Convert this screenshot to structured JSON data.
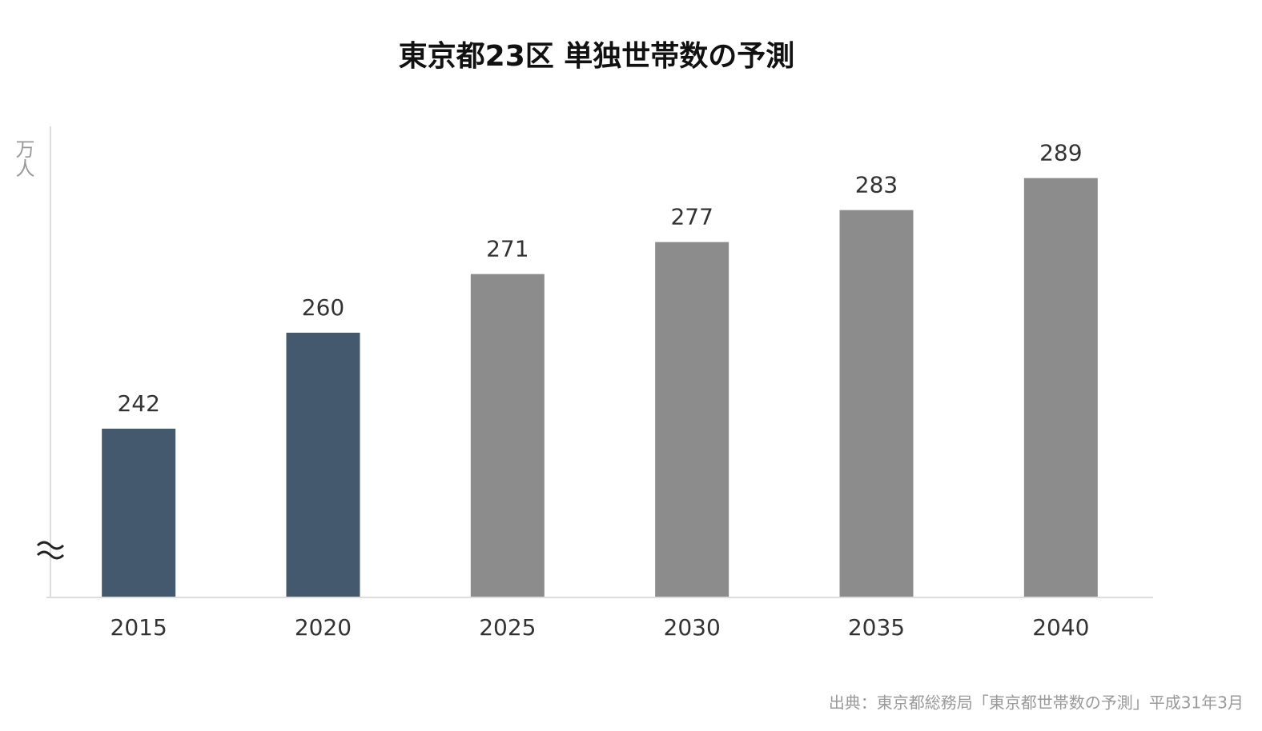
{
  "chart_data": {
    "type": "bar",
    "title": "東京都23区 単独世帯数の予測",
    "y_label": "万人",
    "categories": [
      "2015",
      "2020",
      "2025",
      "2030",
      "2035",
      "2040"
    ],
    "values": [
      242,
      260,
      271,
      277,
      283,
      289
    ],
    "colors": [
      "#44596e",
      "#44596e",
      "#8c8c8c",
      "#8c8c8c",
      "#8c8c8c",
      "#8c8c8c"
    ],
    "ylim": [
      210.5,
      298.7
    ],
    "source": "出典：東京都総務局「東京都世帯数の予測」平成31年3月"
  }
}
